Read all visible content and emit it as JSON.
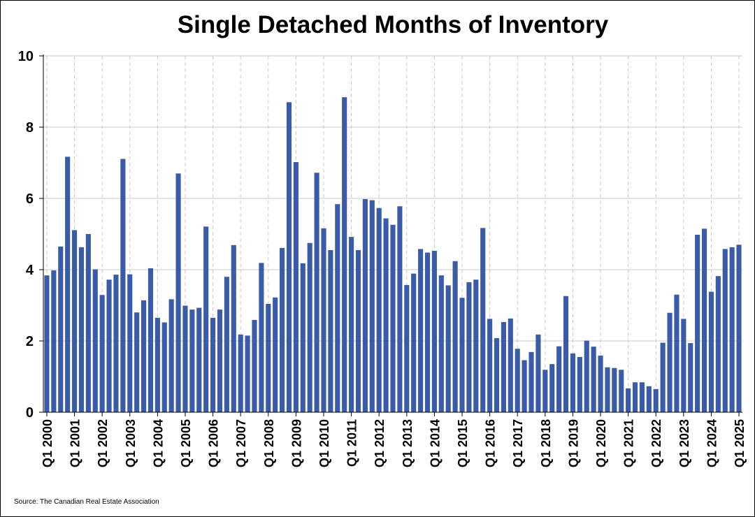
{
  "chart_data": {
    "type": "bar",
    "title": "Single Detached Months of Inventory",
    "source": "Source: The Canadian Real Estate Association",
    "ylim": [
      0,
      10
    ],
    "yticks": [
      0,
      2,
      4,
      6,
      8,
      10
    ],
    "grid": {
      "horizontal": true,
      "vertical_dashed": true
    },
    "color": "#3A5CA8",
    "tick_labels": [
      "Q1 2000",
      "Q1 2001",
      "Q1 2002",
      "Q1 2003",
      "Q1 2004",
      "Q1 2005",
      "Q1 2006",
      "Q1 2007",
      "Q1 2008",
      "Q1 2009",
      "Q1 2010",
      "Q1 2011",
      "Q1 2012",
      "Q1 2013",
      "Q1 2014",
      "Q1 2015",
      "Q1 2016",
      "Q1 2017",
      "Q1 2018",
      "Q1 2019",
      "Q1 2020",
      "Q1 2021",
      "Q1 2022",
      "Q1 2023",
      "Q1 2024",
      "Q1 2025"
    ],
    "categories": [
      "Q1 2000",
      "Q2 2000",
      "Q3 2000",
      "Q4 2000",
      "Q1 2001",
      "Q2 2001",
      "Q3 2001",
      "Q4 2001",
      "Q1 2002",
      "Q2 2002",
      "Q3 2002",
      "Q4 2002",
      "Q1 2003",
      "Q2 2003",
      "Q3 2003",
      "Q4 2003",
      "Q1 2004",
      "Q2 2004",
      "Q3 2004",
      "Q4 2004",
      "Q1 2005",
      "Q2 2005",
      "Q3 2005",
      "Q4 2005",
      "Q1 2006",
      "Q2 2006",
      "Q3 2006",
      "Q4 2006",
      "Q1 2007",
      "Q2 2007",
      "Q3 2007",
      "Q4 2007",
      "Q1 2008",
      "Q2 2008",
      "Q3 2008",
      "Q4 2008",
      "Q1 2009",
      "Q2 2009",
      "Q3 2009",
      "Q4 2009",
      "Q1 2010",
      "Q2 2010",
      "Q3 2010",
      "Q4 2010",
      "Q1 2011",
      "Q2 2011",
      "Q3 2011",
      "Q4 2011",
      "Q1 2012",
      "Q2 2012",
      "Q3 2012",
      "Q4 2012",
      "Q1 2013",
      "Q2 2013",
      "Q3 2013",
      "Q4 2013",
      "Q1 2014",
      "Q2 2014",
      "Q3 2014",
      "Q4 2014",
      "Q1 2015",
      "Q2 2015",
      "Q3 2015",
      "Q4 2015",
      "Q1 2016",
      "Q2 2016",
      "Q3 2016",
      "Q4 2016",
      "Q1 2017",
      "Q2 2017",
      "Q3 2017",
      "Q4 2017",
      "Q1 2018",
      "Q2 2018",
      "Q3 2018",
      "Q4 2018",
      "Q1 2019",
      "Q2 2019",
      "Q3 2019",
      "Q4 2019",
      "Q1 2020",
      "Q2 2020",
      "Q3 2020",
      "Q4 2020",
      "Q1 2021",
      "Q2 2021",
      "Q3 2021",
      "Q4 2021",
      "Q1 2022",
      "Q2 2022",
      "Q3 2022",
      "Q4 2022",
      "Q1 2023",
      "Q2 2023",
      "Q3 2023",
      "Q4 2023",
      "Q1 2024",
      "Q2 2024",
      "Q3 2024",
      "Q4 2024",
      "Q1 2025"
    ],
    "values": [
      3.84,
      3.98,
      4.65,
      7.17,
      5.11,
      4.63,
      5.0,
      4.01,
      3.29,
      3.72,
      3.86,
      7.11,
      3.87,
      2.8,
      3.14,
      4.04,
      2.65,
      2.52,
      3.17,
      6.7,
      2.99,
      2.88,
      2.93,
      5.21,
      2.65,
      2.88,
      3.8,
      4.69,
      2.18,
      2.15,
      2.59,
      4.19,
      3.04,
      3.22,
      4.61,
      8.7,
      7.02,
      4.18,
      4.75,
      6.72,
      5.16,
      4.55,
      5.84,
      8.84,
      4.92,
      4.55,
      5.98,
      5.95,
      5.73,
      5.44,
      5.26,
      5.78,
      3.57,
      3.89,
      4.58,
      4.48,
      4.53,
      3.84,
      3.56,
      4.24,
      3.21,
      3.65,
      3.72,
      5.17,
      2.62,
      2.08,
      2.53,
      2.63,
      1.78,
      1.46,
      1.69,
      2.18,
      1.19,
      1.35,
      1.85,
      3.26,
      1.65,
      1.55,
      2.01,
      1.84,
      1.59,
      1.26,
      1.24,
      1.19,
      0.67,
      0.84,
      0.84,
      0.73,
      0.65,
      1.95,
      2.79,
      3.3,
      2.62,
      1.94,
      4.98,
      5.15,
      3.38,
      3.82,
      4.58,
      4.63,
      4.7
    ]
  }
}
